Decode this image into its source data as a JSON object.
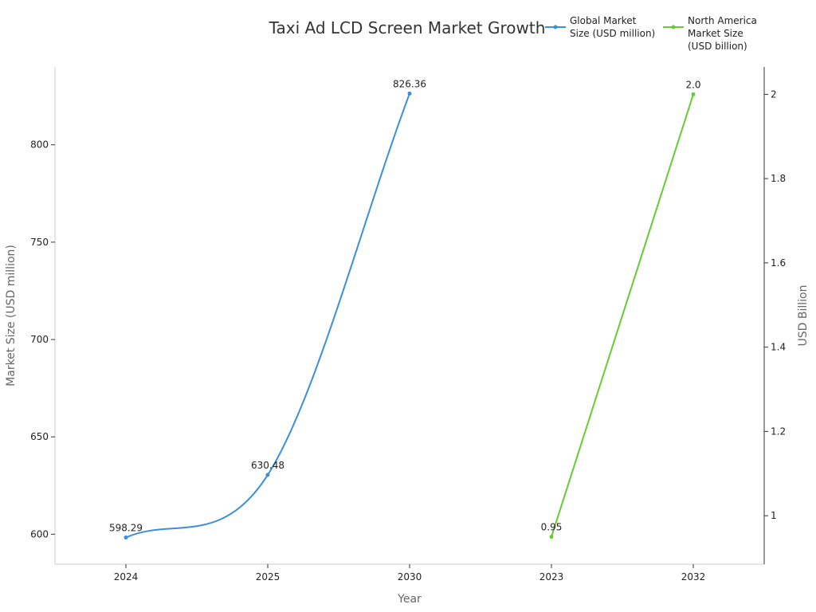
{
  "chart_data": {
    "type": "line",
    "title": "Taxi Ad LCD Screen Market Growth",
    "xlabel": "Year",
    "ylabel_left": "Market Size (USD million)",
    "ylabel_right": "USD Billion",
    "categories": [
      "2024",
      "2025",
      "2030",
      "2023",
      "2032"
    ],
    "legend_position": "top-right",
    "grid": false,
    "left_axis": {
      "range": [
        584.6,
        840
      ],
      "ticks": [
        600,
        650,
        700,
        750,
        800
      ],
      "tick_labels": [
        "600",
        "650",
        "700",
        "750",
        "800"
      ]
    },
    "right_axis": {
      "range": [
        0.885,
        2.065
      ],
      "ticks": [
        1,
        1.2,
        1.4,
        1.6,
        1.8,
        2
      ],
      "tick_labels": [
        "1",
        "1.2",
        "1.4",
        "1.6",
        "1.8",
        "2"
      ]
    },
    "series": [
      {
        "name": "Global Market Size (USD million)",
        "legend_lines": [
          "Global Market",
          "Size (USD million)"
        ],
        "axis": "left",
        "color": "#3a8fde",
        "smooth": true,
        "points": [
          {
            "category": "2024",
            "value": 598.29,
            "label": "598.29"
          },
          {
            "category": "2025",
            "value": 630.48,
            "label": "630.48"
          },
          {
            "category": "2030",
            "value": 826.36,
            "label": "826.36"
          }
        ]
      },
      {
        "name": "North America Market Size (USD billion)",
        "legend_lines": [
          "North America",
          "Market Size",
          "(USD billion)"
        ],
        "axis": "right",
        "color": "#66cc33",
        "smooth": false,
        "points": [
          {
            "category": "2023",
            "value": 0.95,
            "label": "0.95"
          },
          {
            "category": "2032",
            "value": 2.0,
            "label": "2.0"
          }
        ]
      }
    ]
  }
}
